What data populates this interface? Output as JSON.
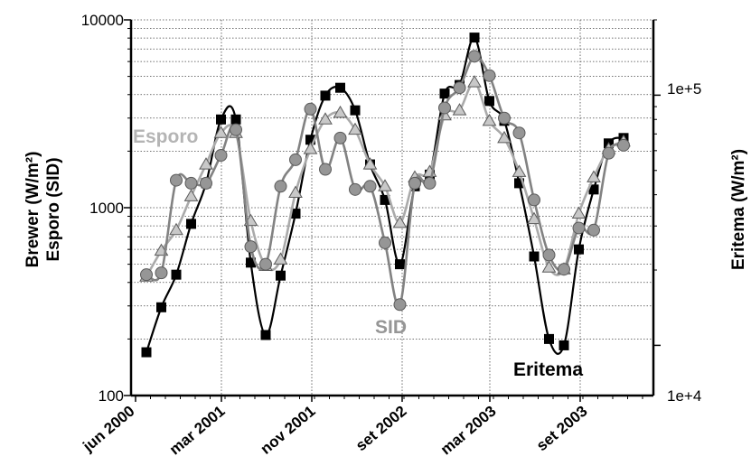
{
  "chart_data": {
    "type": "line",
    "y_axis_left": {
      "title_line1": "Brewer (W/m²)",
      "title_line2": "Esporo (SID)",
      "scale": "log",
      "range": [
        100,
        10000
      ],
      "tick_labels": [
        "100",
        "1000",
        "10000"
      ]
    },
    "y_axis_right": {
      "title": "Eritema (W/m²)",
      "scale": "log",
      "range": [
        6300,
        200000
      ],
      "tick_labels": [
        "1e+4",
        "1e+5"
      ]
    },
    "x_axis": {
      "tick_labels": [
        "jun 2000",
        "mar 2001",
        "nov 2001",
        "set 2002",
        "mar 2003",
        "set 2003"
      ]
    },
    "grid": true,
    "annotations": [
      "Esporo",
      "SID",
      "Eritema"
    ],
    "series": [
      {
        "key": "eritema",
        "name": "Eritema",
        "marker": "square",
        "color": "#000000",
        "marker_fill": "#000000",
        "points": [
          [
            1,
            170
          ],
          [
            2,
            295
          ],
          [
            3,
            440
          ],
          [
            4,
            820
          ],
          [
            5,
            1350
          ],
          [
            6,
            2950
          ],
          [
            7,
            2950
          ],
          [
            8,
            510
          ],
          [
            9,
            210
          ],
          [
            10,
            435
          ],
          [
            11,
            930
          ],
          [
            12,
            2300
          ],
          [
            13,
            3950
          ],
          [
            14,
            4350
          ],
          [
            15,
            3300
          ],
          [
            16,
            1700
          ],
          [
            17,
            1100
          ],
          [
            18,
            500
          ],
          [
            19,
            1300
          ],
          [
            20,
            1500
          ],
          [
            21,
            4050
          ],
          [
            22,
            4500
          ],
          [
            23,
            8050
          ],
          [
            24,
            3700
          ],
          [
            25,
            2900
          ],
          [
            26,
            1350
          ],
          [
            27,
            550
          ],
          [
            28,
            200
          ],
          [
            29,
            185
          ],
          [
            30,
            600
          ],
          [
            31,
            1250
          ],
          [
            32,
            2200
          ],
          [
            33,
            2350
          ]
        ]
      },
      {
        "key": "esporo",
        "name": "Esporo",
        "marker": "triangle",
        "color": "#aaaaaa",
        "marker_fill": "#c8c8c8",
        "points": [
          [
            1,
            430
          ],
          [
            2,
            590
          ],
          [
            3,
            760
          ],
          [
            4,
            1150
          ],
          [
            5,
            1700
          ],
          [
            6,
            2500
          ],
          [
            7,
            2500
          ],
          [
            8,
            850
          ],
          [
            9,
            490
          ],
          [
            10,
            530
          ],
          [
            11,
            1200
          ],
          [
            12,
            2050
          ],
          [
            13,
            2950
          ],
          [
            14,
            3200
          ],
          [
            15,
            2600
          ],
          [
            16,
            1700
          ],
          [
            17,
            1300
          ],
          [
            18,
            830
          ],
          [
            19,
            1450
          ],
          [
            20,
            1550
          ],
          [
            21,
            3100
          ],
          [
            22,
            3300
          ],
          [
            23,
            4650
          ],
          [
            24,
            2900
          ],
          [
            25,
            2350
          ],
          [
            26,
            1550
          ],
          [
            27,
            870
          ],
          [
            28,
            480
          ],
          [
            29,
            470
          ],
          [
            30,
            930
          ],
          [
            31,
            1450
          ],
          [
            32,
            2050
          ],
          [
            33,
            2250
          ]
        ]
      },
      {
        "key": "brewer",
        "name": "Brewer",
        "marker": "circle",
        "color": "#828282",
        "marker_fill": "#969696",
        "points": [
          [
            1,
            440
          ],
          [
            2,
            450
          ],
          [
            3,
            1400
          ],
          [
            4,
            1350
          ],
          [
            5,
            1350
          ],
          [
            6,
            1900
          ],
          [
            7,
            2600
          ],
          [
            8,
            620
          ],
          [
            9,
            500
          ],
          [
            10,
            1300
          ],
          [
            11,
            1800
          ],
          [
            12,
            3350
          ],
          [
            13,
            1600
          ],
          [
            14,
            2350
          ],
          [
            15,
            1250
          ],
          [
            16,
            1300
          ],
          [
            17,
            650
          ],
          [
            18,
            305
          ],
          [
            19,
            1350
          ],
          [
            20,
            1350
          ],
          [
            21,
            3400
          ],
          [
            22,
            4350
          ],
          [
            23,
            6400
          ],
          [
            24,
            5050
          ],
          [
            25,
            3000
          ],
          [
            26,
            2500
          ],
          [
            27,
            1100
          ],
          [
            28,
            560
          ],
          [
            29,
            470
          ],
          [
            30,
            780
          ],
          [
            31,
            760
          ],
          [
            32,
            1950
          ],
          [
            33,
            2150
          ]
        ]
      }
    ]
  }
}
